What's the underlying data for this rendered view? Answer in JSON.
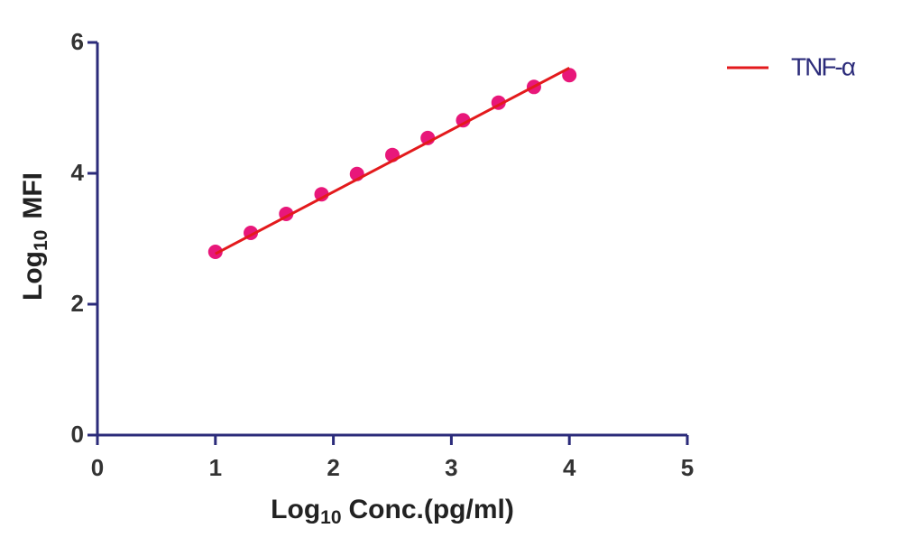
{
  "chart_data": {
    "type": "scatter",
    "xlabel": [
      "Log",
      "10",
      "Conc.(pg/ml)"
    ],
    "ylabel": [
      "Log",
      "10",
      "MFI"
    ],
    "x": [
      1,
      1.3,
      1.6,
      1.9,
      2.2,
      2.5,
      2.8,
      3.1,
      3.4,
      3.7,
      4.0
    ],
    "series": [
      {
        "name": "TNF-α",
        "color": "#e8177a",
        "values": [
          2.8,
          3.09,
          3.38,
          3.68,
          3.99,
          4.28,
          4.54,
          4.81,
          5.08,
          5.32,
          5.5
        ],
        "fit_x": [
          1,
          4
        ],
        "fit_y": [
          2.77,
          5.61
        ],
        "fit_color": "#e31a1c"
      }
    ],
    "xlim": [
      0,
      5
    ],
    "xticks": [
      0,
      1,
      2,
      3,
      4,
      5
    ],
    "ylim": [
      0,
      6
    ],
    "yticks": [
      0,
      2,
      4,
      6
    ],
    "axis_color": "#2b2b7a",
    "legend": "upper right outside"
  }
}
